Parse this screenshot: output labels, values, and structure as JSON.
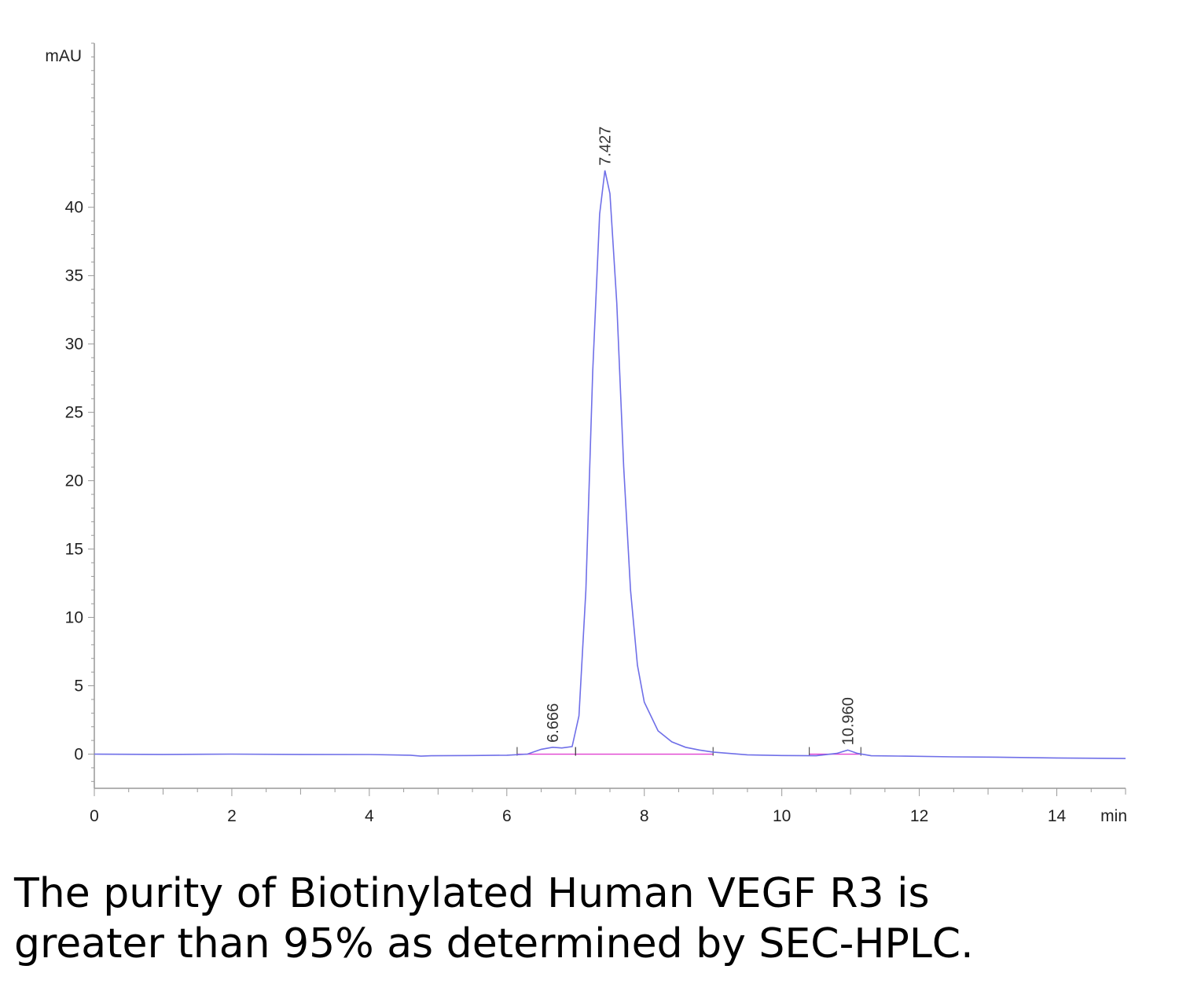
{
  "chart_data": {
    "type": "line",
    "ylabel": "mAU",
    "xlabel": "min",
    "xlim": [
      0,
      15
    ],
    "ylim": [
      -2.5,
      52
    ],
    "x_ticks": [
      0,
      2,
      4,
      6,
      8,
      10,
      12,
      14
    ],
    "y_ticks": [
      0,
      5,
      10,
      15,
      20,
      25,
      30,
      35,
      40
    ],
    "grid": false,
    "line_color": "#6f6fe8",
    "baseline_color": "#e040d0",
    "peaks": [
      {
        "rt": 6.666,
        "label": "6.666",
        "height": 0.5,
        "start": 6.15,
        "end": 7.0
      },
      {
        "rt": 7.427,
        "label": "7.427",
        "height": 42.7,
        "start": 7.0,
        "end": 9.0
      },
      {
        "rt": 10.96,
        "label": "10.960",
        "height": 0.3,
        "start": 10.4,
        "end": 11.15
      }
    ],
    "series": [
      {
        "x": [
          0,
          1,
          2,
          3,
          4,
          4.6,
          4.75,
          4.9,
          5.5,
          6.0,
          6.3,
          6.5,
          6.666,
          6.8,
          6.95,
          7.05,
          7.15,
          7.25,
          7.35,
          7.427,
          7.5,
          7.6,
          7.7,
          7.8,
          7.9,
          8.0,
          8.2,
          8.4,
          8.6,
          8.8,
          9.0,
          9.5,
          10.0,
          10.5,
          10.8,
          10.96,
          11.1,
          11.3,
          11.8,
          12.5,
          13.0,
          14.0,
          15.0
        ],
        "y": [
          0.0,
          -0.02,
          0.0,
          -0.02,
          -0.03,
          -0.08,
          -0.15,
          -0.12,
          -0.1,
          -0.08,
          0.0,
          0.35,
          0.5,
          0.45,
          0.55,
          2.8,
          12.0,
          28.0,
          39.5,
          42.7,
          41.0,
          33.0,
          21.0,
          12.0,
          6.5,
          3.8,
          1.7,
          0.9,
          0.5,
          0.3,
          0.15,
          -0.05,
          -0.1,
          -0.12,
          0.05,
          0.3,
          0.05,
          -0.12,
          -0.15,
          -0.2,
          -0.22,
          -0.28,
          -0.32
        ]
      }
    ]
  },
  "caption": {
    "line1": "The purity of Biotinylated Human VEGF R3 is",
    "line2": "greater than 95% as determined by SEC-HPLC."
  }
}
